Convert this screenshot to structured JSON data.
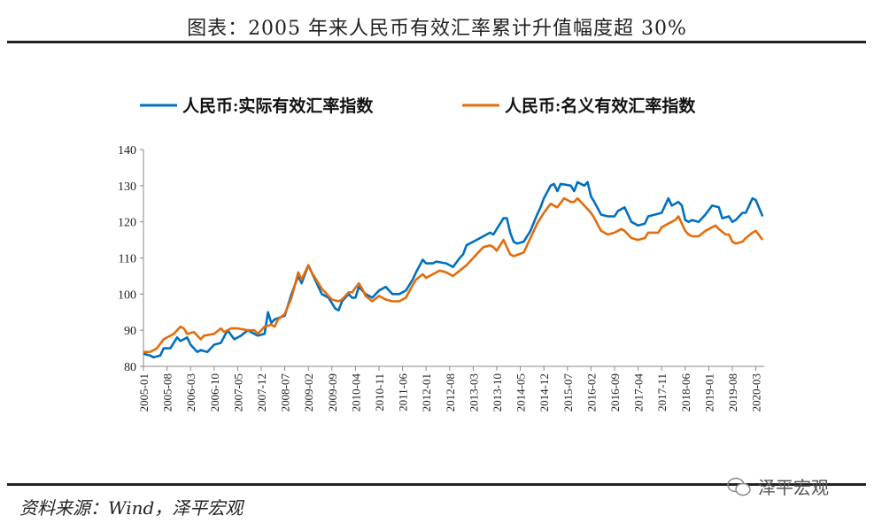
{
  "title": "图表：2005 年来人民币有效汇率累计升值幅度超 30%",
  "source": "资料来源：Wind，泽平宏观",
  "watermark": "泽平宏观",
  "chart_data": {
    "type": "line",
    "title": "图表：2005 年来人民币有效汇率累计升值幅度超 30%",
    "xlabel": "",
    "ylabel": "",
    "x_start": "2005-01",
    "x_unit": "month index since 2005-01",
    "x_range": [
      0,
      184
    ],
    "ylim": [
      80,
      140
    ],
    "yticks": [
      80,
      90,
      100,
      110,
      120,
      130,
      140
    ],
    "xtick_labels": [
      "2005-01",
      "2005-08",
      "2006-03",
      "2006-10",
      "2007-05",
      "2007-12",
      "2008-07",
      "2009-02",
      "2009-09",
      "2010-04",
      "2010-11",
      "2011-06",
      "2012-01",
      "2012-08",
      "2013-03",
      "2013-10",
      "2014-05",
      "2014-12",
      "2015-07",
      "2016-02",
      "2016-09",
      "2017-04",
      "2017-11",
      "2018-06",
      "2019-01",
      "2019-08",
      "2020-03"
    ],
    "xtick_step_months": 7,
    "grid": false,
    "legend_position": "top",
    "series": [
      {
        "name": "人民币:实际有效汇率指数",
        "color": "#0070C0",
        "points": [
          [
            0,
            83.5
          ],
          [
            2,
            83
          ],
          [
            3,
            82.5
          ],
          [
            5,
            83
          ],
          [
            6,
            85
          ],
          [
            8,
            85
          ],
          [
            10,
            88
          ],
          [
            11,
            87
          ],
          [
            13,
            88
          ],
          [
            14,
            86
          ],
          [
            16,
            84
          ],
          [
            17,
            84.5
          ],
          [
            19,
            84
          ],
          [
            21,
            86
          ],
          [
            23,
            86.5
          ],
          [
            25,
            90
          ],
          [
            27,
            87.5
          ],
          [
            29,
            88.5
          ],
          [
            31,
            90
          ],
          [
            33,
            89
          ],
          [
            34,
            88.5
          ],
          [
            36,
            89
          ],
          [
            37,
            95
          ],
          [
            38,
            92
          ],
          [
            39,
            93
          ],
          [
            42,
            94
          ],
          [
            44,
            100
          ],
          [
            46,
            105
          ],
          [
            47,
            103
          ],
          [
            49,
            108
          ],
          [
            50,
            106
          ],
          [
            52,
            102
          ],
          [
            53,
            100
          ],
          [
            55,
            99
          ],
          [
            57,
            96
          ],
          [
            58,
            95.5
          ],
          [
            59,
            98
          ],
          [
            61,
            100
          ],
          [
            62,
            99
          ],
          [
            63,
            99
          ],
          [
            64,
            102
          ],
          [
            65,
            101
          ],
          [
            66,
            100
          ],
          [
            68,
            99
          ],
          [
            70,
            101
          ],
          [
            72,
            102
          ],
          [
            74,
            100
          ],
          [
            76,
            100
          ],
          [
            78,
            101
          ],
          [
            80,
            104
          ],
          [
            81,
            106
          ],
          [
            83,
            109.5
          ],
          [
            84,
            108.5
          ],
          [
            86,
            108.5
          ],
          [
            87,
            109
          ],
          [
            90,
            108.5
          ],
          [
            92,
            107.5
          ],
          [
            94,
            110
          ],
          [
            95,
            111
          ],
          [
            96,
            113.5
          ],
          [
            99,
            115
          ],
          [
            101,
            116
          ],
          [
            103,
            117
          ],
          [
            104,
            116.5
          ],
          [
            105,
            118
          ],
          [
            107,
            121
          ],
          [
            108,
            121
          ],
          [
            109,
            117
          ],
          [
            110,
            114.5
          ],
          [
            111,
            114
          ],
          [
            113,
            114.5
          ],
          [
            115,
            117.5
          ],
          [
            117,
            122
          ],
          [
            118,
            124
          ],
          [
            119,
            126.5
          ],
          [
            121,
            130
          ],
          [
            122,
            130.5
          ],
          [
            123,
            128.5
          ],
          [
            124,
            130.5
          ],
          [
            127,
            130
          ],
          [
            128,
            128.5
          ],
          [
            129,
            131
          ],
          [
            131,
            130
          ],
          [
            132,
            131
          ],
          [
            133,
            127
          ],
          [
            134,
            125.5
          ],
          [
            136,
            122
          ],
          [
            138,
            121.5
          ],
          [
            140,
            121.5
          ],
          [
            141,
            123
          ],
          [
            143,
            124
          ],
          [
            145,
            120
          ],
          [
            147,
            119
          ],
          [
            149,
            119.5
          ],
          [
            150,
            121.5
          ],
          [
            152,
            122
          ],
          [
            154,
            122.5
          ],
          [
            156,
            126.5
          ],
          [
            157,
            124.5
          ],
          [
            159,
            125.5
          ],
          [
            160,
            124.5
          ],
          [
            161,
            120.5
          ],
          [
            162,
            120
          ],
          [
            163,
            120.5
          ],
          [
            165,
            120
          ],
          [
            167,
            122
          ],
          [
            169,
            124.5
          ],
          [
            171,
            124
          ],
          [
            172,
            121
          ],
          [
            174,
            121.5
          ],
          [
            175,
            120
          ],
          [
            176,
            120.5
          ],
          [
            178,
            122.5
          ],
          [
            179,
            122.5
          ],
          [
            181,
            126.5
          ],
          [
            182,
            126
          ],
          [
            184,
            121.5
          ]
        ]
      },
      {
        "name": "人民币:名义有效汇率指数",
        "color": "#E46C0A",
        "points": [
          [
            0,
            84
          ],
          [
            2,
            84
          ],
          [
            4,
            85
          ],
          [
            6,
            87.5
          ],
          [
            9,
            89
          ],
          [
            11,
            91
          ],
          [
            12,
            90.5
          ],
          [
            13,
            89
          ],
          [
            15,
            89.5
          ],
          [
            17,
            87.5
          ],
          [
            18,
            88.5
          ],
          [
            21,
            89
          ],
          [
            23,
            90.5
          ],
          [
            24,
            89.5
          ],
          [
            26,
            90.5
          ],
          [
            28,
            90.5
          ],
          [
            31,
            90
          ],
          [
            33,
            90
          ],
          [
            34,
            89
          ],
          [
            36,
            91
          ],
          [
            38,
            91.5
          ],
          [
            39,
            91
          ],
          [
            40,
            93
          ],
          [
            42,
            94.5
          ],
          [
            44,
            99
          ],
          [
            46,
            106
          ],
          [
            47,
            104
          ],
          [
            49,
            108
          ],
          [
            50,
            106
          ],
          [
            52,
            103
          ],
          [
            53,
            101.5
          ],
          [
            56,
            98.5
          ],
          [
            58,
            98
          ],
          [
            59,
            98.5
          ],
          [
            61,
            100.5
          ],
          [
            62,
            100.5
          ],
          [
            64,
            103
          ],
          [
            65,
            101.5
          ],
          [
            66,
            99.5
          ],
          [
            68,
            98
          ],
          [
            70,
            99.5
          ],
          [
            72,
            98.5
          ],
          [
            74,
            98
          ],
          [
            76,
            98
          ],
          [
            78,
            99
          ],
          [
            80,
            102.5
          ],
          [
            81,
            104
          ],
          [
            83,
            105.5
          ],
          [
            84,
            104.5
          ],
          [
            86,
            105.5
          ],
          [
            88,
            106.5
          ],
          [
            90,
            106
          ],
          [
            92,
            105
          ],
          [
            94,
            106.5
          ],
          [
            96,
            108
          ],
          [
            99,
            111
          ],
          [
            101,
            113
          ],
          [
            103,
            113.5
          ],
          [
            104,
            113
          ],
          [
            105,
            112
          ],
          [
            107,
            115
          ],
          [
            108,
            113
          ],
          [
            109,
            111
          ],
          [
            110,
            110.5
          ],
          [
            113,
            111.5
          ],
          [
            115,
            115.5
          ],
          [
            117,
            119.5
          ],
          [
            118,
            121
          ],
          [
            119,
            122.5
          ],
          [
            121,
            125
          ],
          [
            122,
            124.5
          ],
          [
            123,
            124
          ],
          [
            125,
            126.5
          ],
          [
            127,
            125.5
          ],
          [
            128,
            125.5
          ],
          [
            129,
            126.5
          ],
          [
            131,
            124.5
          ],
          [
            133,
            122.5
          ],
          [
            134,
            121
          ],
          [
            136,
            117.5
          ],
          [
            138,
            116.5
          ],
          [
            140,
            117
          ],
          [
            142,
            118
          ],
          [
            143,
            117.5
          ],
          [
            145,
            115.5
          ],
          [
            147,
            115
          ],
          [
            149,
            115.5
          ],
          [
            150,
            117
          ],
          [
            153,
            117
          ],
          [
            154,
            118.5
          ],
          [
            156,
            119.5
          ],
          [
            158,
            120.5
          ],
          [
            159,
            121.5
          ],
          [
            161,
            117.5
          ],
          [
            162,
            116.5
          ],
          [
            163,
            116
          ],
          [
            165,
            116
          ],
          [
            167,
            117.5
          ],
          [
            169,
            118.5
          ],
          [
            170,
            119
          ],
          [
            171,
            118
          ],
          [
            173,
            116.5
          ],
          [
            174,
            116.5
          ],
          [
            175,
            114.5
          ],
          [
            176,
            114
          ],
          [
            178,
            114.5
          ],
          [
            179,
            115.5
          ],
          [
            181,
            117
          ],
          [
            182,
            117.5
          ],
          [
            184,
            115
          ]
        ]
      }
    ]
  }
}
